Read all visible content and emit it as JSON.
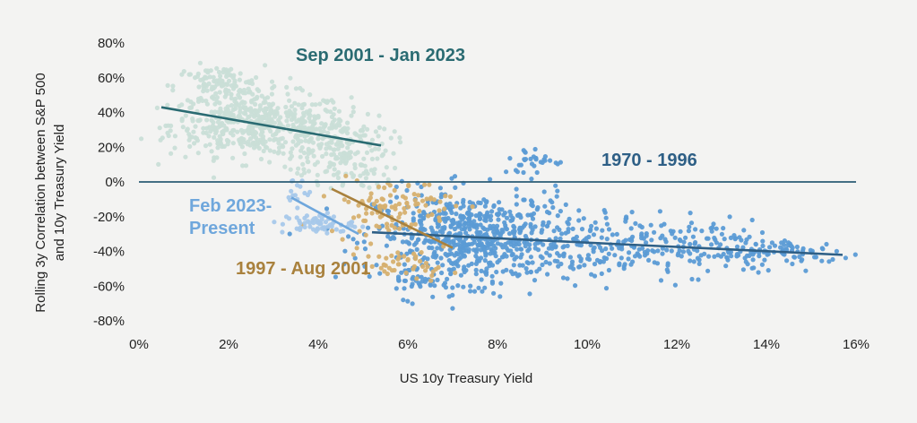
{
  "chart_data": {
    "type": "scatter",
    "title": "",
    "xlabel": "US 10y Treasury Yield",
    "ylabel_lines": [
      "Rolling 3y Correlation between S&P 500",
      "and 10y Treasury Yield"
    ],
    "xlim": [
      0,
      16
    ],
    "ylim": [
      -80,
      80
    ],
    "x_ticks": [
      0,
      2,
      4,
      6,
      8,
      10,
      12,
      14,
      16
    ],
    "x_tick_labels": [
      "0%",
      "2%",
      "4%",
      "6%",
      "8%",
      "10%",
      "12%",
      "14%",
      "16%"
    ],
    "y_ticks": [
      80,
      60,
      40,
      20,
      0,
      -20,
      -40,
      -60,
      -80
    ],
    "y_tick_labels": [
      "80%",
      "60%",
      "40%",
      "20%",
      "0%",
      "-20%",
      "-40%",
      "-60%",
      "-80%"
    ],
    "grid": false,
    "zero_line": true,
    "series": [
      {
        "name": "1970 - 1996",
        "label": "1970 - 1996",
        "color": "#5b9bd5",
        "text_color": "#2e5f86",
        "line_color": "#2e5f86",
        "trendline": [
          [
            5.2,
            -29
          ],
          [
            15.7,
            -42
          ]
        ],
        "clusters": [
          {
            "cx": 7.5,
            "cy": -32,
            "sx": 1.1,
            "sy": 13,
            "n": 650
          },
          {
            "cx": 10.3,
            "cy": -38,
            "sx": 1.0,
            "sy": 10,
            "n": 160
          },
          {
            "cx": 12.8,
            "cy": -37,
            "sx": 0.9,
            "sy": 8,
            "n": 120
          },
          {
            "cx": 14.7,
            "cy": -41,
            "sx": 0.6,
            "sy": 4,
            "n": 60
          },
          {
            "cx": 8.8,
            "cy": 12,
            "sx": 0.35,
            "sy": 4,
            "n": 30
          },
          {
            "cx": 6.3,
            "cy": -55,
            "sx": 0.4,
            "sy": 6,
            "n": 40
          }
        ]
      },
      {
        "name": "Sep 2001 - Jan 2023",
        "label": "Sep 2001 - Jan 2023",
        "color": "#c9ded7",
        "text_color": "#2a6b72",
        "line_color": "#2a6b72",
        "trendline": [
          [
            0.5,
            43
          ],
          [
            5.4,
            21
          ]
        ],
        "clusters": [
          {
            "cx": 2.7,
            "cy": 33,
            "sx": 1.0,
            "sy": 9,
            "n": 500
          },
          {
            "cx": 1.8,
            "cy": 55,
            "sx": 0.5,
            "sy": 6,
            "n": 120
          },
          {
            "cx": 4.4,
            "cy": 22,
            "sx": 0.6,
            "sy": 9,
            "n": 160
          },
          {
            "cx": 4.6,
            "cy": 4,
            "sx": 0.5,
            "sy": 4,
            "n": 40
          }
        ]
      },
      {
        "name": "1997 - Aug 2001",
        "label": "1997 - Aug 2001",
        "color": "#d6b06f",
        "text_color": "#a9813d",
        "line_color": "#a9813d",
        "trendline": [
          [
            4.3,
            -4
          ],
          [
            7.0,
            -38
          ]
        ],
        "clusters": [
          {
            "cx": 5.6,
            "cy": -14,
            "sx": 0.7,
            "sy": 8,
            "n": 100
          },
          {
            "cx": 6.0,
            "cy": -48,
            "sx": 0.5,
            "sy": 4,
            "n": 45
          }
        ]
      },
      {
        "name": "Feb 2023-Present",
        "label_lines": [
          "Feb 2023-",
          "Present"
        ],
        "color": "#a7c8ea",
        "text_color": "#6fa7dc",
        "line_color": "#6fa7dc",
        "trendline": [
          [
            3.4,
            -9
          ],
          [
            4.9,
            -30
          ]
        ],
        "clusters": [
          {
            "cx": 4.0,
            "cy": -24,
            "sx": 0.4,
            "sy": 3,
            "n": 60
          },
          {
            "cx": 3.5,
            "cy": -6,
            "sx": 0.15,
            "sy": 4,
            "n": 15
          }
        ]
      }
    ]
  }
}
